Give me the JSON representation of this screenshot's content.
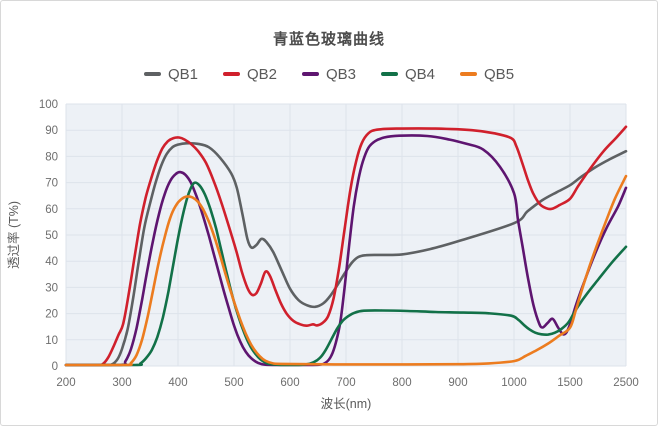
{
  "chart_data": {
    "type": "line",
    "title": "青蓝色玻璃曲线",
    "xlabel": "波长(nm)",
    "ylabel": "透过率 (T%)",
    "x_ticks": [
      200,
      300,
      400,
      500,
      600,
      700,
      800,
      900,
      1000,
      1500,
      2500
    ],
    "x_axis_note": "ticks are evenly spaced on screen; scale is piecewise linear between consecutive ticks",
    "y_ticks": [
      0,
      10,
      20,
      30,
      40,
      50,
      60,
      70,
      80,
      90,
      100
    ],
    "ylim": [
      0,
      100
    ],
    "grid": true,
    "legend_position": "top",
    "plot_background": "#edf1f6",
    "gridline_color": "#dde3eb",
    "series": [
      {
        "name": "QB1",
        "color": "#5e6163",
        "points": [
          [
            200,
            0
          ],
          [
            272,
            0
          ],
          [
            282,
            0.6
          ],
          [
            292,
            2.6
          ],
          [
            300,
            6.5
          ],
          [
            310,
            14
          ],
          [
            320,
            26
          ],
          [
            330,
            40
          ],
          [
            340,
            53
          ],
          [
            350,
            62
          ],
          [
            360,
            70
          ],
          [
            370,
            76.5
          ],
          [
            380,
            81
          ],
          [
            390,
            83.5
          ],
          [
            400,
            84.5
          ],
          [
            415,
            85
          ],
          [
            435,
            84.8
          ],
          [
            455,
            83.5
          ],
          [
            475,
            79.5
          ],
          [
            495,
            73.5
          ],
          [
            505,
            68
          ],
          [
            515,
            58
          ],
          [
            524,
            48.5
          ],
          [
            531,
            45.2
          ],
          [
            540,
            46.2
          ],
          [
            549,
            48.5
          ],
          [
            558,
            47.3
          ],
          [
            570,
            43.5
          ],
          [
            585,
            36.5
          ],
          [
            600,
            29.5
          ],
          [
            615,
            25.2
          ],
          [
            630,
            23.2
          ],
          [
            645,
            22.6
          ],
          [
            660,
            24
          ],
          [
            672,
            26.8
          ],
          [
            685,
            31
          ],
          [
            698,
            35.5
          ],
          [
            710,
            39.3
          ],
          [
            722,
            41.6
          ],
          [
            736,
            42.3
          ],
          [
            760,
            42.4
          ],
          [
            800,
            42.6
          ],
          [
            850,
            44.6
          ],
          [
            900,
            47.6
          ],
          [
            1000,
            54.5
          ],
          [
            1120,
            59
          ],
          [
            1250,
            63.2
          ],
          [
            1380,
            66.3
          ],
          [
            1500,
            69
          ],
          [
            1700,
            72.2
          ],
          [
            1950,
            75.8
          ],
          [
            2200,
            78.8
          ],
          [
            2500,
            82
          ]
        ]
      },
      {
        "name": "QB2",
        "color": "#d0202c",
        "points": [
          [
            200,
            0
          ],
          [
            256,
            0
          ],
          [
            266,
            0.8
          ],
          [
            276,
            3.5
          ],
          [
            286,
            8
          ],
          [
            294,
            12
          ],
          [
            302,
            16
          ],
          [
            312,
            27.5
          ],
          [
            322,
            41
          ],
          [
            332,
            54
          ],
          [
            342,
            64
          ],
          [
            352,
            71.5
          ],
          [
            362,
            78
          ],
          [
            372,
            83
          ],
          [
            382,
            85.8
          ],
          [
            392,
            87
          ],
          [
            402,
            87.2
          ],
          [
            412,
            86.4
          ],
          [
            424,
            84.6
          ],
          [
            436,
            82
          ],
          [
            450,
            77.5
          ],
          [
            464,
            70.5
          ],
          [
            478,
            62
          ],
          [
            492,
            52.5
          ],
          [
            504,
            44
          ],
          [
            514,
            36
          ],
          [
            524,
            29.8
          ],
          [
            532,
            27.2
          ],
          [
            540,
            27.8
          ],
          [
            548,
            31.5
          ],
          [
            556,
            36
          ],
          [
            564,
            34.5
          ],
          [
            574,
            29
          ],
          [
            584,
            23.8
          ],
          [
            594,
            20
          ],
          [
            606,
            17.2
          ],
          [
            618,
            15.9
          ],
          [
            630,
            15.4
          ],
          [
            641,
            15.9
          ],
          [
            648,
            15.5
          ],
          [
            658,
            16.4
          ],
          [
            668,
            19
          ],
          [
            678,
            26
          ],
          [
            688,
            38
          ],
          [
            698,
            53
          ],
          [
            708,
            67.5
          ],
          [
            718,
            78
          ],
          [
            728,
            85
          ],
          [
            740,
            88.8
          ],
          [
            755,
            90.2
          ],
          [
            790,
            90.6
          ],
          [
            860,
            90.6
          ],
          [
            925,
            90
          ],
          [
            965,
            88.8
          ],
          [
            995,
            87
          ],
          [
            1020,
            84
          ],
          [
            1070,
            78
          ],
          [
            1120,
            71.5
          ],
          [
            1170,
            66
          ],
          [
            1230,
            61.8
          ],
          [
            1290,
            60.2
          ],
          [
            1340,
            60
          ],
          [
            1410,
            61.5
          ],
          [
            1500,
            63.8
          ],
          [
            1650,
            68.8
          ],
          [
            1850,
            75
          ],
          [
            2100,
            82
          ],
          [
            2320,
            87
          ],
          [
            2500,
            91.3
          ]
        ]
      },
      {
        "name": "QB3",
        "color": "#5e1570",
        "points": [
          [
            200,
            0
          ],
          [
            296,
            0
          ],
          [
            306,
            1.8
          ],
          [
            316,
            6.5
          ],
          [
            326,
            14.5
          ],
          [
            336,
            25.5
          ],
          [
            346,
            37.5
          ],
          [
            356,
            48.5
          ],
          [
            366,
            58
          ],
          [
            376,
            65.5
          ],
          [
            386,
            70.6
          ],
          [
            396,
            73.3
          ],
          [
            404,
            74
          ],
          [
            413,
            73
          ],
          [
            423,
            70
          ],
          [
            433,
            64.8
          ],
          [
            444,
            57.8
          ],
          [
            456,
            49
          ],
          [
            468,
            39.5
          ],
          [
            480,
            30
          ],
          [
            491,
            21.8
          ],
          [
            501,
            14.8
          ],
          [
            511,
            9.3
          ],
          [
            521,
            5.4
          ],
          [
            531,
            2.9
          ],
          [
            543,
            1.2
          ],
          [
            556,
            0.5
          ],
          [
            585,
            0.3
          ],
          [
            625,
            0.3
          ],
          [
            652,
            0.5
          ],
          [
            664,
            1.3
          ],
          [
            674,
            4
          ],
          [
            682,
            9
          ],
          [
            690,
            17
          ],
          [
            698,
            31
          ],
          [
            706,
            47
          ],
          [
            714,
            61
          ],
          [
            722,
            71
          ],
          [
            730,
            78
          ],
          [
            740,
            83.3
          ],
          [
            752,
            85.8
          ],
          [
            768,
            87.2
          ],
          [
            795,
            87.9
          ],
          [
            845,
            87.8
          ],
          [
            885,
            86.4
          ],
          [
            915,
            84.8
          ],
          [
            945,
            82.6
          ],
          [
            975,
            76
          ],
          [
            1000,
            66
          ],
          [
            1035,
            56
          ],
          [
            1075,
            46
          ],
          [
            1125,
            33.5
          ],
          [
            1175,
            23
          ],
          [
            1225,
            16.2
          ],
          [
            1255,
            14.7
          ],
          [
            1300,
            16.4
          ],
          [
            1345,
            18
          ],
          [
            1392,
            14.8
          ],
          [
            1435,
            12.2
          ],
          [
            1468,
            12.8
          ],
          [
            1510,
            16.5
          ],
          [
            1610,
            23.5
          ],
          [
            1760,
            32.5
          ],
          [
            1960,
            43.5
          ],
          [
            2160,
            53
          ],
          [
            2360,
            61
          ],
          [
            2500,
            68
          ]
        ]
      },
      {
        "name": "QB4",
        "color": "#127148",
        "points": [
          [
            200,
            0
          ],
          [
            323,
            0
          ],
          [
            333,
            1
          ],
          [
            343,
            3
          ],
          [
            353,
            6
          ],
          [
            363,
            11
          ],
          [
            373,
            18.5
          ],
          [
            383,
            28.5
          ],
          [
            393,
            40.5
          ],
          [
            403,
            52
          ],
          [
            413,
            61.5
          ],
          [
            421,
            67
          ],
          [
            429,
            69.9
          ],
          [
            438,
            69
          ],
          [
            448,
            65.5
          ],
          [
            458,
            59.8
          ],
          [
            468,
            52.5
          ],
          [
            478,
            43.5
          ],
          [
            488,
            34.5
          ],
          [
            498,
            26
          ],
          [
            508,
            18.8
          ],
          [
            518,
            12.8
          ],
          [
            528,
            8
          ],
          [
            538,
            4.7
          ],
          [
            548,
            2.4
          ],
          [
            558,
            1.1
          ],
          [
            570,
            0.6
          ],
          [
            598,
            0.4
          ],
          [
            628,
            0.6
          ],
          [
            642,
            1.4
          ],
          [
            654,
            3.2
          ],
          [
            664,
            6.2
          ],
          [
            674,
            10.2
          ],
          [
            684,
            14.2
          ],
          [
            694,
            17.2
          ],
          [
            704,
            19
          ],
          [
            716,
            20.4
          ],
          [
            732,
            21.1
          ],
          [
            765,
            21.2
          ],
          [
            810,
            21
          ],
          [
            860,
            20.6
          ],
          [
            910,
            20.4
          ],
          [
            955,
            20.1
          ],
          [
            995,
            19.2
          ],
          [
            1040,
            17.6
          ],
          [
            1090,
            15.6
          ],
          [
            1140,
            13.9
          ],
          [
            1190,
            12.7
          ],
          [
            1245,
            12.1
          ],
          [
            1305,
            12
          ],
          [
            1365,
            12.7
          ],
          [
            1425,
            14.2
          ],
          [
            1485,
            16.6
          ],
          [
            1560,
            19.8
          ],
          [
            1660,
            23.3
          ],
          [
            1810,
            27.8
          ],
          [
            2010,
            33.2
          ],
          [
            2260,
            39.8
          ],
          [
            2500,
            45.5
          ]
        ]
      },
      {
        "name": "QB5",
        "color": "#ec7c1f",
        "points": [
          [
            200,
            0
          ],
          [
            306,
            0
          ],
          [
            316,
            1.2
          ],
          [
            326,
            4.2
          ],
          [
            336,
            10.2
          ],
          [
            346,
            19
          ],
          [
            356,
            29.5
          ],
          [
            366,
            40
          ],
          [
            376,
            49
          ],
          [
            386,
            56.5
          ],
          [
            396,
            61.2
          ],
          [
            406,
            63.7
          ],
          [
            416,
            64.7
          ],
          [
            426,
            64.3
          ],
          [
            436,
            62.6
          ],
          [
            446,
            59.3
          ],
          [
            456,
            54.6
          ],
          [
            466,
            48.6
          ],
          [
            476,
            41.6
          ],
          [
            486,
            34.2
          ],
          [
            496,
            27.2
          ],
          [
            506,
            20.8
          ],
          [
            516,
            14.9
          ],
          [
            526,
            10
          ],
          [
            536,
            6.3
          ],
          [
            546,
            3.7
          ],
          [
            556,
            2
          ],
          [
            568,
            1.1
          ],
          [
            585,
            0.8
          ],
          [
            680,
            0.6
          ],
          [
            800,
            0.6
          ],
          [
            900,
            0.7
          ],
          [
            955,
            1
          ],
          [
            1005,
            1.9
          ],
          [
            1105,
            3.9
          ],
          [
            1205,
            6.1
          ],
          [
            1305,
            8.6
          ],
          [
            1405,
            11.6
          ],
          [
            1500,
            14.6
          ],
          [
            1600,
            21
          ],
          [
            1705,
            28.5
          ],
          [
            1855,
            38.5
          ],
          [
            2005,
            47.5
          ],
          [
            2155,
            56
          ],
          [
            2305,
            64
          ],
          [
            2500,
            72.5
          ]
        ]
      }
    ]
  }
}
